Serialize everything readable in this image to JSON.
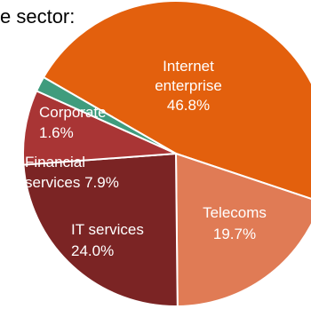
{
  "caption": "e sector:",
  "chart_data": {
    "type": "pie",
    "slices": [
      {
        "label": "Internet enterprise",
        "value": 46.8,
        "display": "46.8%",
        "color": "#e3600d"
      },
      {
        "label": "Telecoms",
        "value": 19.7,
        "display": "19.7%",
        "color": "#e07b55"
      },
      {
        "label": "IT services",
        "value": 24.0,
        "display": "24.0%",
        "color": "#7b2424"
      },
      {
        "label": "Financial services",
        "value": 7.9,
        "display": "7.9%",
        "color": "#a93535"
      },
      {
        "label": "Corporate",
        "value": 1.6,
        "display": "1.6%",
        "color": "#3f9c7d"
      }
    ],
    "label_color": "#ffffff",
    "slice_border": "#ffffff"
  }
}
